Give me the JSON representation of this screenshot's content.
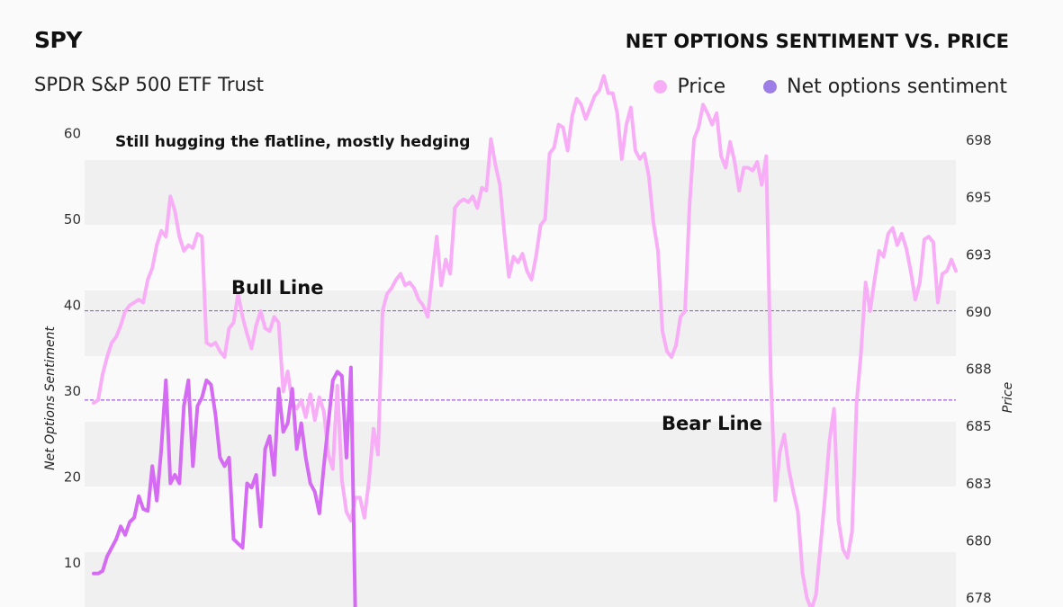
{
  "header": {
    "ticker": "SPY",
    "fullname": "SPDR S&P 500 ETF Trust",
    "title": "NET OPTIONS SENTIMENT VS. PRICE"
  },
  "legend": {
    "price_label": "Price",
    "sentiment_label": "Net options sentiment"
  },
  "colors": {
    "price": "#f8aef6",
    "sentiment": "#d56bf3",
    "legend_sentiment": "#9c7ee6",
    "reference_line": "#a15fd9",
    "band": "#f0f0f0"
  },
  "annotations": {
    "top": "Still hugging the flatline, mostly hedging",
    "bull": "Bull Line",
    "bear": "Bear Line"
  },
  "chart_data": {
    "type": "line",
    "ylabel_left": "Net Options Sentiment",
    "ylabel_right": "Price",
    "left_axis": {
      "ticks": [
        10,
        20,
        30,
        40,
        50,
        60
      ],
      "range": [
        4,
        60
      ]
    },
    "right_axis": {
      "ticks": [
        "678",
        "680",
        "683",
        "685",
        "688",
        "690",
        "693",
        "695",
        "698"
      ]
    },
    "reference_lines": [
      {
        "name": "Bull Line",
        "value": 40.1
      },
      {
        "name": "Bear Line",
        "value": 29.7
      }
    ],
    "series": [
      {
        "name": "Price",
        "axis": "right",
        "values": [
          684.8,
          684.9,
          685.8,
          686.4,
          686.9,
          687.1,
          687.5,
          688.0,
          688.2,
          688.3,
          688.4,
          688.3,
          689.1,
          689.5,
          690.3,
          690.8,
          690.6,
          692.0,
          691.5,
          690.6,
          690.1,
          690.3,
          690.2,
          690.7,
          690.6,
          686.9,
          686.8,
          686.9,
          686.6,
          686.4,
          687.4,
          687.6,
          688.6,
          687.8,
          687.2,
          686.7,
          687.5,
          688.0,
          687.4,
          687.3,
          687.8,
          687.6,
          685.2,
          685.9,
          684.8,
          684.6,
          684.9,
          684.3,
          685.1,
          684.2,
          685.0,
          684.5,
          683.0,
          682.5,
          685.4,
          682.1,
          681.0,
          680.7,
          681.5,
          681.5,
          680.8,
          682.1,
          683.9,
          683.0,
          688.0,
          688.6,
          688.8,
          689.1,
          689.3,
          688.9,
          689.0,
          688.8,
          688.4,
          688.2,
          687.8,
          689.2,
          690.6,
          688.9,
          689.8,
          689.3,
          691.6,
          691.8,
          691.9,
          691.8,
          692.0,
          691.6,
          692.3,
          692.2,
          694.0,
          693.1,
          692.4,
          690.7,
          689.2,
          689.9,
          689.7,
          690.0,
          689.4,
          689.1,
          689.9,
          691.0,
          691.2,
          693.5,
          693.7,
          694.5,
          694.4,
          693.6,
          694.8,
          695.4,
          695.2,
          694.7,
          695.1,
          695.5,
          695.7,
          696.2,
          695.6,
          695.6,
          694.9,
          693.3,
          694.5,
          695.1,
          693.6,
          693.3,
          693.5,
          692.7,
          691.1,
          690.1,
          687.3,
          686.6,
          686.4,
          686.8,
          687.8,
          688.0,
          691.7,
          694.0,
          694.4,
          695.2,
          694.9,
          694.5,
          694.9,
          693.4,
          693.0,
          693.9,
          693.2,
          692.2,
          693.0,
          693.0,
          692.9,
          693.2,
          692.4,
          693.4,
          685.7,
          681.4,
          683.1,
          683.7,
          682.5,
          681.7,
          681.0,
          678.9,
          678.0,
          677.6,
          678.1,
          679.8,
          681.5,
          683.5,
          684.6,
          680.7,
          679.7,
          679.4,
          680.3,
          684.8,
          686.6,
          689.0,
          688.0,
          689.1,
          690.1,
          689.9,
          690.7,
          690.9,
          690.3,
          690.7,
          690.2,
          689.4,
          688.4,
          689.0,
          690.5,
          690.6,
          690.4,
          688.3,
          689.3,
          689.4,
          689.8,
          689.4
        ]
      },
      {
        "name": "Net options sentiment",
        "axis": "left",
        "values": [
          9.5,
          9.5,
          9.8,
          11.5,
          12.5,
          13.5,
          15.0,
          14.0,
          15.5,
          16.0,
          18.5,
          17.0,
          16.8,
          22.0,
          18.0,
          24.0,
          32.0,
          20.0,
          21.0,
          20.0,
          29.0,
          32.0,
          22.0,
          29.0,
          30.0,
          32.0,
          31.5,
          28.0,
          23.0,
          22.0,
          23.0,
          13.5,
          13.0,
          12.5,
          20.0,
          19.5,
          21.0,
          15.0,
          24.0,
          25.5,
          21.0,
          31.0,
          26.0,
          27.0,
          31.0,
          24.0,
          27.0,
          23.0,
          20.0,
          19.0,
          16.5,
          22.0,
          27.0,
          32.0,
          33.0,
          32.5,
          23.0,
          33.5,
          4.0
        ]
      }
    ]
  }
}
